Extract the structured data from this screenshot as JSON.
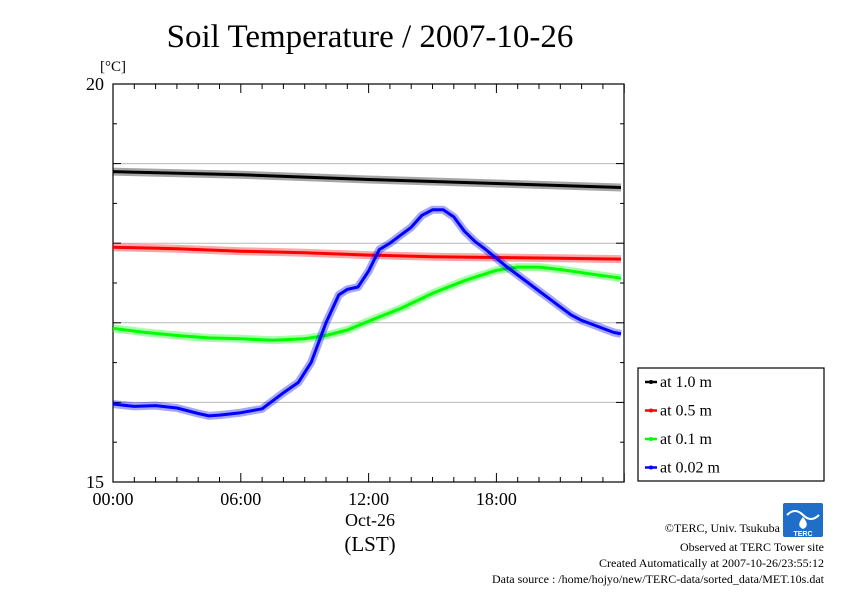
{
  "chart_data": {
    "type": "line",
    "title": "Soil Temperature / 2007-10-26",
    "ylabel": "[°C]",
    "ylim": [
      15,
      20
    ],
    "ytick_labels": [
      "15",
      "20"
    ],
    "xlim": [
      0,
      23.99
    ],
    "xtick_labels": [
      "00:00",
      "06:00",
      "12:00",
      "18:00"
    ],
    "xtick_values": [
      0,
      6,
      12,
      18
    ],
    "date_label": "Oct-26",
    "xlabel": "(LST)",
    "grid": true,
    "legend_position": "right",
    "series": [
      {
        "name": "at 1.0 m",
        "color": "#000000",
        "x": [
          0,
          6,
          12,
          18,
          24
        ],
        "y": [
          18.9,
          18.86,
          18.8,
          18.75,
          18.7
        ]
      },
      {
        "name": "at 0.5 m",
        "color": "#ff0000",
        "x": [
          0,
          3,
          6,
          9,
          12,
          15,
          18,
          21,
          24
        ],
        "y": [
          17.95,
          17.93,
          17.9,
          17.88,
          17.85,
          17.83,
          17.82,
          17.81,
          17.8
        ]
      },
      {
        "name": "at 0.1 m",
        "color": "#00ff00",
        "x": [
          0,
          1.5,
          3,
          4.5,
          6,
          7.5,
          9,
          10,
          11,
          12,
          13.5,
          15,
          16.5,
          18,
          19,
          20,
          21,
          22.5,
          24
        ],
        "y": [
          16.93,
          16.88,
          16.84,
          16.81,
          16.8,
          16.78,
          16.8,
          16.84,
          16.91,
          17.02,
          17.18,
          17.37,
          17.53,
          17.66,
          17.7,
          17.7,
          17.67,
          17.61,
          17.56
        ]
      },
      {
        "name": "at 0.02 m",
        "color": "#0000ff",
        "x": [
          0,
          1,
          2,
          3,
          4,
          4.5,
          5,
          6,
          7,
          8,
          8.7,
          9.3,
          10,
          10.6,
          11,
          11.5,
          12,
          12.5,
          13,
          13.5,
          14,
          14.5,
          15,
          15.5,
          16,
          16.5,
          17,
          17.5,
          18,
          18.5,
          19,
          19.5,
          20,
          20.5,
          21,
          21.5,
          22,
          22.5,
          23,
          23.5,
          24
        ],
        "y": [
          15.98,
          15.95,
          15.96,
          15.93,
          15.86,
          15.83,
          15.84,
          15.87,
          15.92,
          16.12,
          16.25,
          16.5,
          17.0,
          17.35,
          17.42,
          17.45,
          17.65,
          17.92,
          18.0,
          18.1,
          18.2,
          18.35,
          18.42,
          18.42,
          18.33,
          18.15,
          18.02,
          17.92,
          17.81,
          17.7,
          17.6,
          17.5,
          17.4,
          17.3,
          17.2,
          17.1,
          17.03,
          16.98,
          16.93,
          16.88,
          16.86
        ]
      }
    ]
  },
  "credits": {
    "copyright": "©TERC, Univ. Tsukuba",
    "observed": "Observed at TERC Tower site",
    "created": "Created Automatically at 2007-10-26/23:55:12",
    "source": "Data source : /home/hojyo/new/TERC-data/sorted_data/MET.10s.dat",
    "logo_text": "TERC"
  }
}
